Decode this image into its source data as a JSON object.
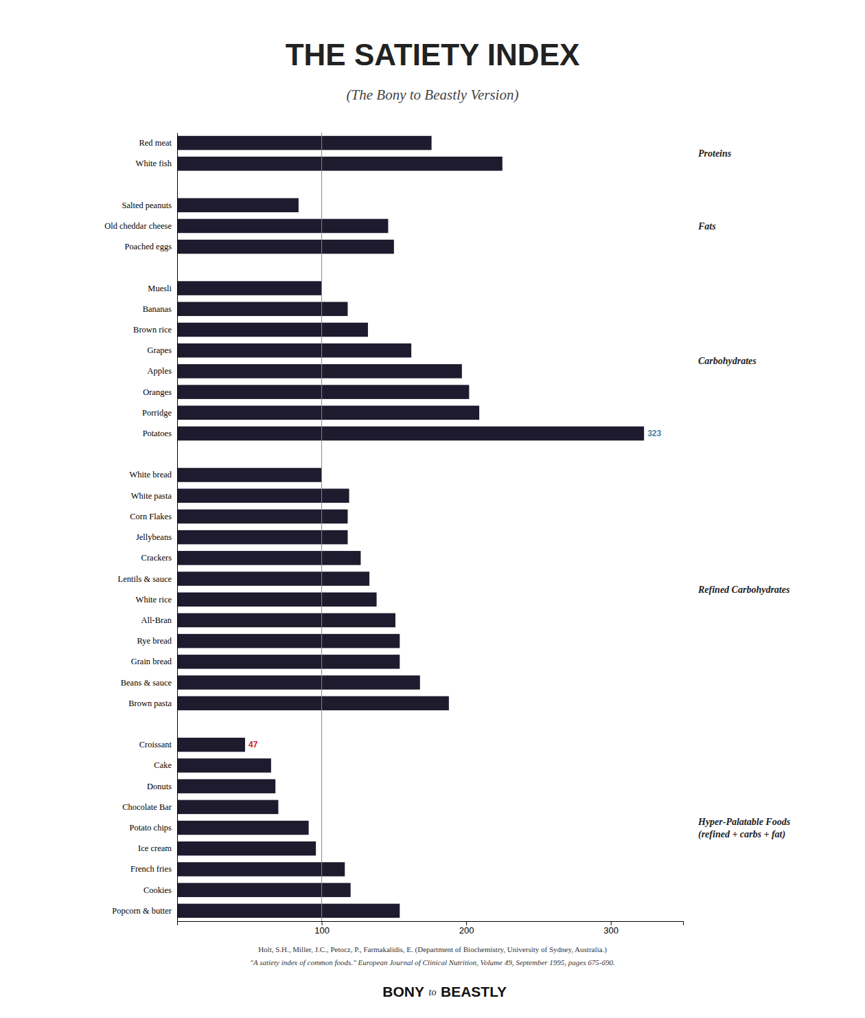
{
  "chart_data": {
    "type": "bar",
    "orientation": "horizontal",
    "title": "THE SATIETY INDEX",
    "subtitle": "(The Bony to Beastly Version)",
    "categories": [
      "Red meat",
      "White fish",
      null,
      "Salted peanuts",
      "Old cheddar cheese",
      "Poached eggs",
      null,
      "Muesli",
      "Bananas",
      "Brown rice",
      "Grapes",
      "Apples",
      "Oranges",
      "Porridge",
      "Potatoes",
      null,
      "White bread",
      "White pasta",
      "Corn Flakes",
      "Jellybeans",
      "Crackers",
      "Lentils & sauce",
      "White rice",
      "All-Bran",
      "Rye bread",
      "Grain bread",
      "Beans & sauce",
      "Brown pasta",
      null,
      "Croissant",
      "Cake",
      "Donuts",
      "Chocolate Bar",
      "Potato chips",
      "Ice cream",
      "French fries",
      "Cookies",
      "Popcorn & butter"
    ],
    "values": [
      176,
      225,
      null,
      84,
      146,
      150,
      null,
      100,
      118,
      132,
      162,
      197,
      202,
      209,
      323,
      null,
      100,
      119,
      118,
      118,
      127,
      133,
      138,
      151,
      154,
      154,
      168,
      188,
      null,
      47,
      65,
      68,
      70,
      91,
      96,
      116,
      120,
      154
    ],
    "color": "#1e1b2e",
    "xlim": [
      0,
      350
    ],
    "xticks": [
      100,
      200,
      300
    ],
    "grid": false,
    "reference_line": 100,
    "annotations": [
      {
        "text": "323",
        "category": "Potatoes",
        "color": "#4a7fa5"
      },
      {
        "text": "47",
        "category": "Croissant",
        "color": "#cc2222"
      }
    ],
    "groups": [
      {
        "label": "Proteins",
        "start": 0,
        "end": 1
      },
      {
        "label": "Fats",
        "start": 3,
        "end": 5
      },
      {
        "label": "Carbohydrates",
        "start": 7,
        "end": 14
      },
      {
        "label": "Refined Carbohydrates",
        "start": 16,
        "end": 27
      },
      {
        "label": "Hyper-Palatable Foods\n(refined + carbs + fat)",
        "start": 29,
        "end": 37
      }
    ],
    "footer": [
      "Holt, S.H., Miller, J.C., Petocz, P., Farmakalidis, E. (Department of Biochemistry, University of Sydney, Australia.)",
      "\"A satiety index of common foods.\" European Journal of Clinical Nutrition, Volume 49, September 1995, pages 675-690."
    ],
    "brand": [
      "BONY",
      "to",
      "BEASTLY"
    ]
  }
}
